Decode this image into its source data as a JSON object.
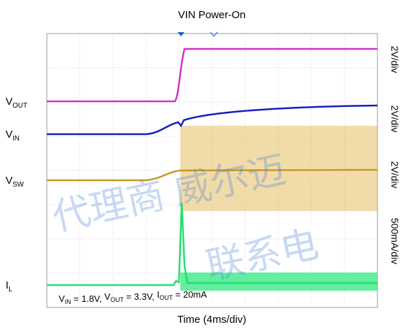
{
  "title": "VIN Power-On",
  "x_label": "Time (4ms/div)",
  "channels": [
    {
      "main": "V",
      "sub": "OUT",
      "scale": "2V/div"
    },
    {
      "main": "V",
      "sub": "IN",
      "scale": "2V/div"
    },
    {
      "main": "V",
      "sub": "SW",
      "scale": "2V/div"
    },
    {
      "main": "I",
      "sub": "L",
      "scale": "500mA/div"
    }
  ],
  "annotation": [
    {
      "main": "V",
      "sub": "IN",
      "rest": " = 1.8V, "
    },
    {
      "main": "V",
      "sub": "OUT",
      "rest": " = 3.3V, "
    },
    {
      "main": "I",
      "sub": "OUT",
      "rest": " = 20mA"
    }
  ],
  "watermark": [
    "代理商 威尔迈",
    "联系电"
  ]
}
